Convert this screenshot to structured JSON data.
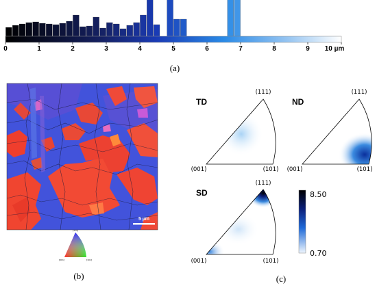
{
  "panel_a": {
    "label": "(a)",
    "axis_ticks": [
      "0",
      "1",
      "2",
      "3",
      "4",
      "5",
      "6",
      "7",
      "8",
      "9",
      "10 µm"
    ]
  },
  "panel_b": {
    "label": "(b)",
    "scale_bar": "5 µm",
    "ipf_key": {
      "top": "[111]",
      "left": "[001]",
      "right": "[101]"
    }
  },
  "panel_c": {
    "label": "(c)",
    "figures": [
      {
        "title": "TD",
        "top": "(111)",
        "left": "(001)",
        "right": "(101)"
      },
      {
        "title": "ND",
        "top": "(111)",
        "left": "(001)",
        "right": "(101)"
      },
      {
        "title": "SD",
        "top": "(111)",
        "left": "(001)",
        "right": "(101)"
      }
    ],
    "colorbar": {
      "max": "8.50",
      "min": "0.70"
    }
  },
  "chart_data": {
    "type": "bar",
    "x_unit": "µm",
    "xlim": [
      0,
      10
    ],
    "bar_width": 0.2,
    "x": [
      0.1,
      0.3,
      0.5,
      0.7,
      0.9,
      1.1,
      1.3,
      1.5,
      1.7,
      1.9,
      2.1,
      2.3,
      2.5,
      2.7,
      2.9,
      3.1,
      3.3,
      3.5,
      3.7,
      3.9,
      4.1,
      4.3,
      4.5,
      4.9,
      5.1,
      5.3,
      6.7,
      6.9
    ],
    "values": [
      13,
      16,
      18,
      20,
      21,
      19,
      18,
      17,
      19,
      22,
      31,
      14,
      15,
      28,
      12,
      20,
      18,
      11,
      16,
      20,
      31,
      70,
      17,
      65,
      25,
      25,
      60,
      65
    ]
  }
}
